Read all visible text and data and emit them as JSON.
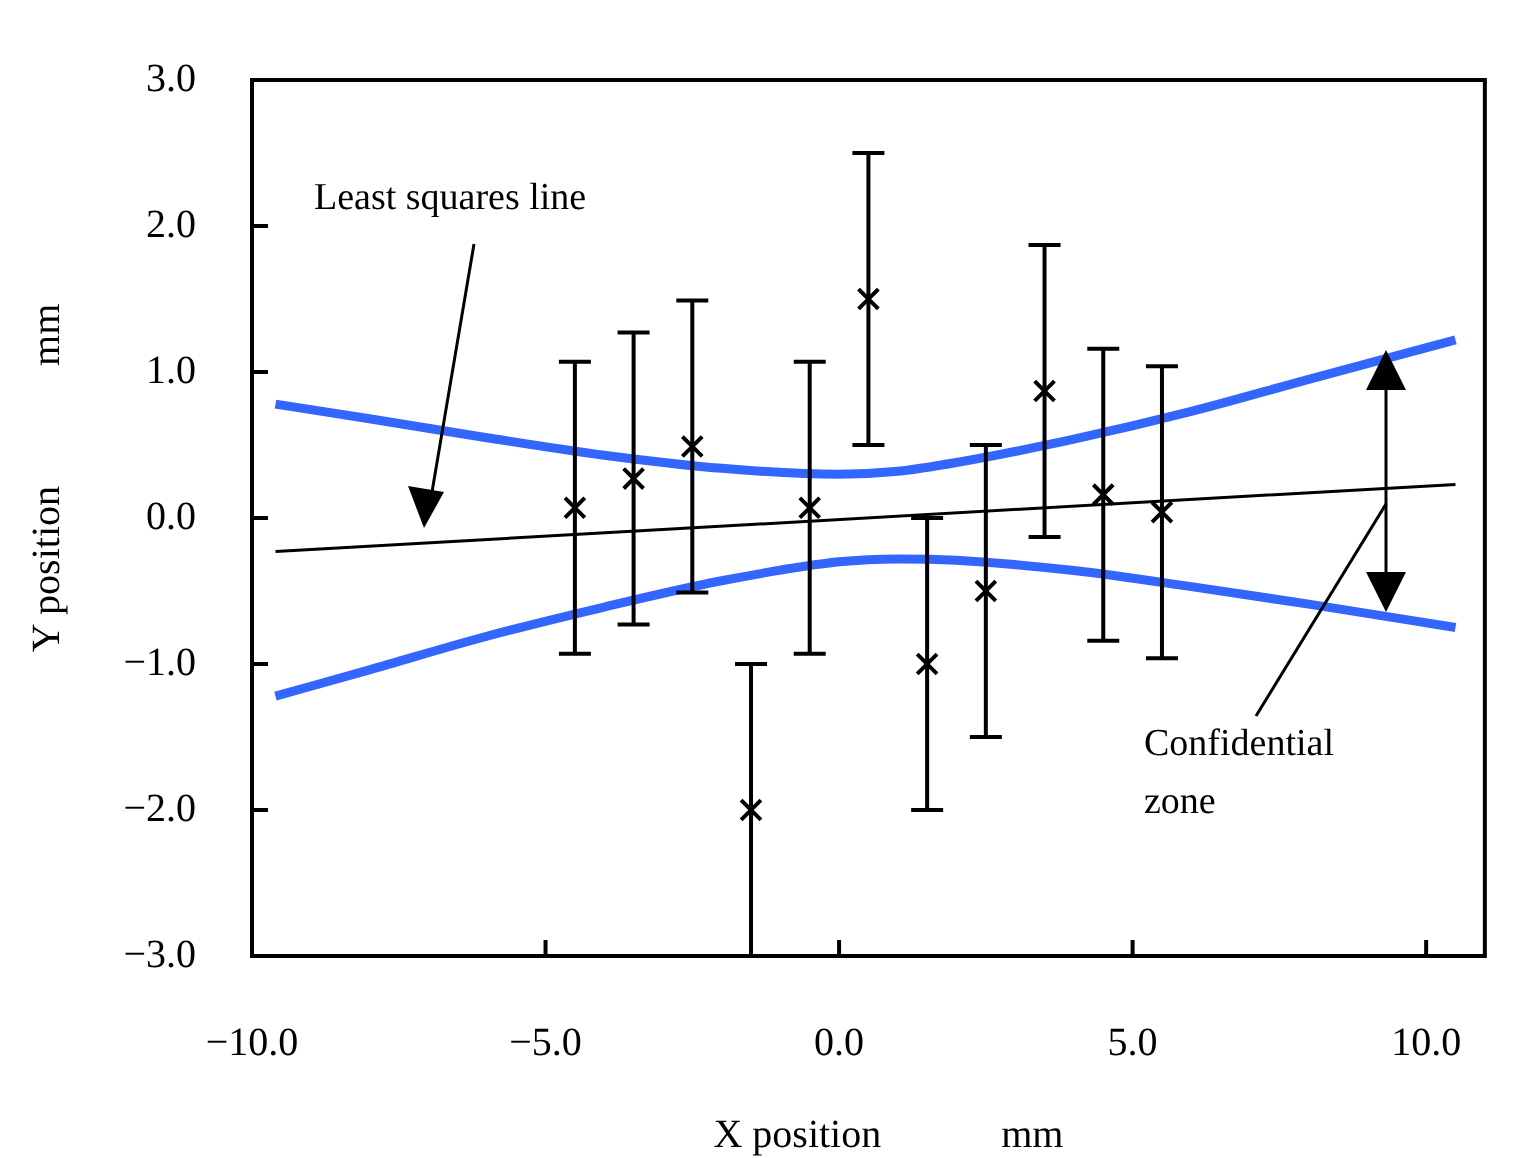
{
  "chart_data": {
    "type": "scatter",
    "xlabel": "X position            mm",
    "ylabel": "Y position            mm",
    "xlim": [
      -10,
      11
    ],
    "xticks": [
      {
        "value": -10,
        "label": "−10.0"
      },
      {
        "value": -5,
        "label": "−5.0"
      },
      {
        "value": 0,
        "label": "0.0"
      },
      {
        "value": 5,
        "label": "5.0"
      },
      {
        "value": 10,
        "label": "10.0"
      }
    ],
    "ylim": [
      -3,
      3
    ],
    "yticks": [
      {
        "value": -3,
        "label": "−3.0"
      },
      {
        "value": -2,
        "label": "−2.0"
      },
      {
        "value": -1,
        "label": "−1.0"
      },
      {
        "value": 0,
        "label": "0.0"
      },
      {
        "value": 1,
        "label": "1.0"
      },
      {
        "value": 2,
        "label": "2.0"
      },
      {
        "value": 3,
        "label": "3.0"
      }
    ],
    "grid": false,
    "legend": false,
    "series": [
      {
        "type": "scatter",
        "color": "#000000",
        "marker": "cross",
        "x": [
          -4.5,
          -3.5,
          -2.5,
          -1.5,
          -0.5,
          0.5,
          1.5,
          2.5,
          3.5,
          4.5,
          5.5
        ],
        "values": [
          0.07,
          0.27,
          0.49,
          -2.0,
          0.07,
          1.5,
          -1.0,
          -0.5,
          0.87,
          0.16,
          0.04
        ],
        "errors": [
          1,
          1,
          1,
          1,
          1,
          1,
          1,
          1,
          1,
          1,
          1
        ]
      },
      {
        "type": "line",
        "color": "#000000",
        "marker": "none",
        "x": [
          -9.6,
          10.5
        ],
        "values": [
          -0.23,
          0.23
        ]
      },
      {
        "type": "line",
        "color": "#3366ff",
        "marker": "none",
        "x": [
          -9.6,
          -8,
          -6,
          -4,
          -2,
          0,
          1,
          2,
          4,
          6,
          8,
          10.5
        ],
        "values": [
          0.78,
          0.68,
          0.55,
          0.43,
          0.34,
          0.3,
          0.32,
          0.38,
          0.54,
          0.73,
          0.95,
          1.22
        ]
      },
      {
        "type": "line",
        "color": "#3366ff",
        "marker": "none",
        "x": [
          -9.6,
          -8,
          -6,
          -4,
          -2,
          0,
          1,
          2,
          4,
          6,
          8,
          10.5
        ],
        "values": [
          -1.22,
          -1.04,
          -0.81,
          -0.61,
          -0.43,
          -0.3,
          -0.28,
          -0.29,
          -0.36,
          -0.47,
          -0.59,
          -0.75
        ]
      }
    ],
    "annotations": [
      "Least squares line",
      "Confidential\nzone"
    ]
  }
}
